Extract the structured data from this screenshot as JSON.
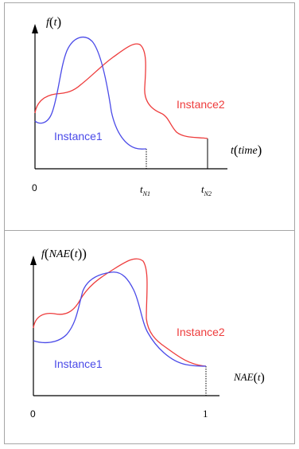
{
  "colors": {
    "instance1": "#4a4ae8",
    "instance2": "#ee3c3c",
    "axis": "#000000",
    "border": "#a6a6a6"
  },
  "top_panel": {
    "y_label_f": "f",
    "y_label_arg": "t",
    "x_label_t": "t",
    "x_label_arg": "time",
    "origin_label": "0",
    "tick1_main": "t",
    "tick1_sub": "N1",
    "tick2_main": "t",
    "tick2_sub": "N2",
    "instance1_label": "Instance1",
    "instance2_label": "Instance2"
  },
  "bottom_panel": {
    "y_label_f": "f",
    "y_label_inner": "NAE",
    "y_label_arg": "t",
    "x_label_main": "NAE",
    "x_label_arg": "t",
    "origin_label": "0",
    "end_label": "1",
    "instance1_label": "Instance1",
    "instance2_label": "Instance2"
  }
}
